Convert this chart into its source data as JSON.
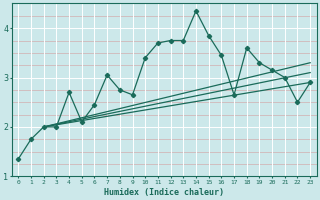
{
  "xlabel": "Humidex (Indice chaleur)",
  "background_color": "#cce8ea",
  "line_color": "#1a6b5a",
  "grid_color": "#ffffff",
  "grid_minor_color": "#e8c8c8",
  "x_data": [
    0,
    1,
    2,
    3,
    4,
    5,
    6,
    7,
    8,
    9,
    10,
    11,
    12,
    13,
    14,
    15,
    16,
    17,
    18,
    19,
    20,
    21,
    22,
    23
  ],
  "y_main": [
    1.35,
    1.75,
    2.0,
    2.0,
    2.7,
    2.1,
    2.45,
    3.05,
    2.75,
    2.65,
    3.4,
    3.7,
    3.75,
    3.75,
    4.35,
    3.85,
    3.45,
    2.65,
    3.6,
    3.3,
    3.15,
    3.0,
    2.5,
    2.9
  ],
  "ylim": [
    1.0,
    4.5
  ],
  "xlim": [
    -0.5,
    23.5
  ],
  "yticks": [
    1,
    2,
    3,
    4
  ],
  "xticks": [
    0,
    1,
    2,
    3,
    4,
    5,
    6,
    7,
    8,
    9,
    10,
    11,
    12,
    13,
    14,
    15,
    16,
    17,
    18,
    19,
    20,
    21,
    22,
    23
  ],
  "trend_lines": [
    {
      "x0": 2.0,
      "y0": 2.0,
      "x1": 23.0,
      "y1": 2.9
    },
    {
      "x0": 2.0,
      "y0": 2.0,
      "x1": 23.0,
      "y1": 3.1
    },
    {
      "x0": 2.0,
      "y0": 2.0,
      "x1": 23.0,
      "y1": 3.3
    }
  ]
}
